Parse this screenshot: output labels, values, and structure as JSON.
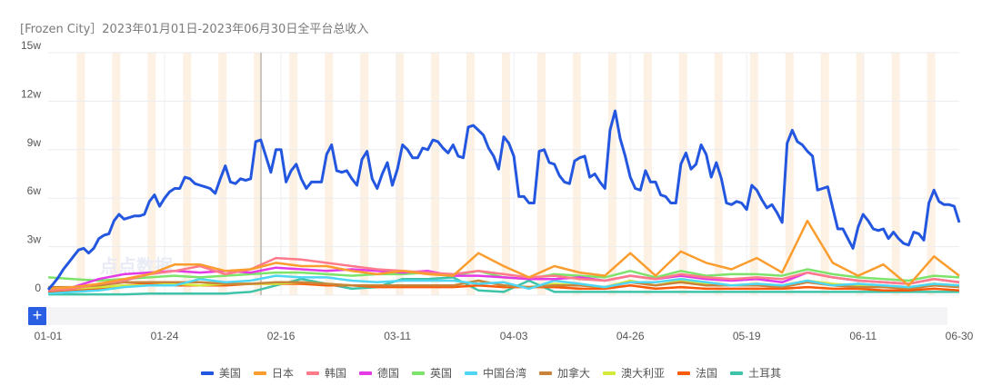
{
  "title": "[Frozen City］2023年01月01日-2023年06月30日全平台总收入",
  "watermark": "点点数据",
  "zoom_button": "+",
  "chart_data": {
    "type": "line",
    "title": "[Frozen City］2023年01月01日-2023年06月30日全平台总收入",
    "xlabel": "",
    "ylabel": "",
    "unit": "w",
    "ylim": [
      0,
      15
    ],
    "yticks": [
      "0",
      "3w",
      "6w",
      "9w",
      "12w",
      "15w"
    ],
    "xlim": [
      "2023-01-01",
      "2023-06-30"
    ],
    "xticks": [
      "01-01",
      "01-24",
      "02-16",
      "03-11",
      "04-03",
      "04-26",
      "05-19",
      "06-11",
      "06-30"
    ],
    "grid": true,
    "weekend_shading": true,
    "legend_position": "bottom",
    "daily_start": "2023-01-01",
    "sparse_x": [
      "01-01",
      "01-06",
      "01-11",
      "01-16",
      "01-21",
      "01-26",
      "01-31",
      "02-05",
      "02-10",
      "02-15",
      "02-20",
      "02-25",
      "03-02",
      "03-07",
      "03-12",
      "03-17",
      "03-22",
      "03-27",
      "04-01",
      "04-06",
      "04-11",
      "04-16",
      "04-21",
      "04-26",
      "05-01",
      "05-06",
      "05-11",
      "05-16",
      "05-21",
      "05-26",
      "05-31",
      "06-05",
      "06-10",
      "06-15",
      "06-20",
      "06-25",
      "06-30"
    ],
    "series": [
      {
        "name": "美国",
        "color": "#2457e0",
        "daily": true,
        "values": [
          0.34,
          0.7,
          1.1,
          1.6,
          2.0,
          2.4,
          2.8,
          2.9,
          2.6,
          2.9,
          3.5,
          3.7,
          3.8,
          4.6,
          5.0,
          4.7,
          4.8,
          4.9,
          4.9,
          5.0,
          5.8,
          6.2,
          5.5,
          6.0,
          6.4,
          6.6,
          6.6,
          7.3,
          7.2,
          6.9,
          6.8,
          6.7,
          6.6,
          6.3,
          7.2,
          8.0,
          7.0,
          6.9,
          7.2,
          7.1,
          7.2,
          9.5,
          9.6,
          8.6,
          7.6,
          9.0,
          9.0,
          7.0,
          7.7,
          8.1,
          7.2,
          6.6,
          7.0,
          7.0,
          7.0,
          8.7,
          9.3,
          7.7,
          7.6,
          7.7,
          7.2,
          6.8,
          8.4,
          8.9,
          7.2,
          6.6,
          7.5,
          8.2,
          6.8,
          7.8,
          9.3,
          9.0,
          8.5,
          8.5,
          9.1,
          9.0,
          9.6,
          9.5,
          9.1,
          8.8,
          9.3,
          8.6,
          8.5,
          10.4,
          10.5,
          10.2,
          9.9,
          9.1,
          8.6,
          7.8,
          9.8,
          9.4,
          8.6,
          6.1,
          6.1,
          5.7,
          5.7,
          8.9,
          9.0,
          8.2,
          8.1,
          7.4,
          7.0,
          6.9,
          8.3,
          8.5,
          8.6,
          7.3,
          7.5,
          7.0,
          6.6,
          10.2,
          11.4,
          9.7,
          8.6,
          7.3,
          6.6,
          6.5,
          7.7,
          7.0,
          7.0,
          6.2,
          6.1,
          5.7,
          5.7,
          8.1,
          8.8,
          7.8,
          8.1,
          9.3,
          8.7,
          7.3,
          8.2,
          7.2,
          5.7,
          5.6,
          5.8,
          5.7,
          5.3,
          6.8,
          6.5,
          5.9,
          5.4,
          5.6,
          5.1,
          4.5,
          9.4,
          10.2,
          9.5,
          9.3,
          8.9,
          8.6,
          6.5,
          6.6,
          6.7,
          5.4,
          4.1,
          4.1,
          3.5,
          2.9,
          4.2,
          5.0,
          4.6,
          4.1,
          4.0,
          4.1,
          3.5,
          3.9,
          3.5,
          3.2,
          3.1,
          3.9,
          3.8,
          3.4,
          5.7,
          6.5,
          5.8,
          5.6,
          5.6,
          5.5,
          4.5
        ]
      },
      {
        "name": "日本",
        "color": "#fb9d2e",
        "values": [
          0.4,
          0.5,
          0.7,
          1.0,
          1.3,
          1.9,
          1.9,
          1.5,
          1.6,
          2.0,
          1.8,
          1.8,
          1.5,
          1.3,
          1.5,
          1.3,
          1.2,
          2.6,
          1.8,
          1.1,
          1.8,
          1.4,
          1.2,
          2.6,
          1.2,
          2.7,
          2.0,
          1.6,
          2.3,
          1.4,
          4.6,
          2.0,
          1.2,
          1.9,
          0.6,
          2.4,
          1.2
        ]
      },
      {
        "name": "韩国",
        "color": "#ff7b8b",
        "values": [
          0.3,
          0.4,
          0.7,
          0.9,
          1.3,
          1.5,
          1.8,
          1.3,
          1.6,
          2.3,
          2.2,
          2.0,
          1.8,
          1.6,
          1.5,
          1.4,
          1.3,
          1.5,
          1.3,
          1.1,
          1.2,
          1.0,
          0.9,
          1.2,
          1.0,
          1.3,
          1.1,
          1.0,
          1.1,
          1.0,
          1.4,
          1.1,
          0.9,
          0.8,
          0.7,
          1.0,
          0.8
        ]
      },
      {
        "name": "德国",
        "color": "#e33ae6",
        "values": [
          0.3,
          0.5,
          1.0,
          1.3,
          1.4,
          1.5,
          1.4,
          1.5,
          1.4,
          1.7,
          1.6,
          1.5,
          1.6,
          1.5,
          1.4,
          1.5,
          1.2,
          1.2,
          1.1,
          1.0,
          1.0,
          1.1,
          0.9,
          1.2,
          1.0,
          1.2,
          1.0,
          0.9,
          1.0,
          0.8,
          1.4,
          1.1,
          0.9,
          0.8,
          0.7,
          1.0,
          0.8
        ]
      },
      {
        "name": "英国",
        "color": "#7de36a",
        "values": [
          1.1,
          1.0,
          0.9,
          1.0,
          1.1,
          1.2,
          1.1,
          1.2,
          1.3,
          1.4,
          1.4,
          1.3,
          1.2,
          1.3,
          1.3,
          1.4,
          1.2,
          1.5,
          1.1,
          1.0,
          1.3,
          1.2,
          1.1,
          1.5,
          1.1,
          1.5,
          1.2,
          1.3,
          1.3,
          1.2,
          1.6,
          1.3,
          1.1,
          1.0,
          0.9,
          1.2,
          1.1
        ]
      },
      {
        "name": "中国台湾",
        "color": "#4fd6f2",
        "values": [
          0.1,
          0.2,
          0.3,
          0.5,
          0.6,
          0.6,
          1.0,
          0.8,
          0.9,
          1.2,
          1.1,
          1.1,
          0.9,
          0.8,
          0.9,
          0.9,
          0.9,
          0.7,
          0.8,
          0.4,
          0.9,
          0.7,
          0.5,
          0.8,
          0.8,
          1.0,
          0.8,
          0.6,
          0.7,
          0.6,
          0.9,
          0.6,
          0.7,
          0.6,
          0.5,
          0.7,
          0.6
        ]
      },
      {
        "name": "加拿大",
        "color": "#c8843a",
        "values": [
          0.5,
          0.5,
          0.6,
          0.8,
          0.8,
          0.8,
          0.8,
          0.7,
          0.7,
          0.8,
          0.8,
          0.7,
          0.6,
          0.6,
          0.6,
          0.6,
          0.6,
          0.9,
          0.6,
          0.5,
          0.6,
          0.6,
          0.5,
          0.8,
          0.6,
          0.8,
          0.6,
          0.6,
          0.6,
          0.5,
          0.8,
          0.6,
          0.5,
          0.5,
          0.4,
          0.6,
          0.5
        ]
      },
      {
        "name": "澳大利亚",
        "color": "#d4ea3a",
        "values": [
          0.3,
          0.4,
          0.5,
          0.6,
          0.6,
          0.7,
          0.6,
          0.7,
          0.7,
          0.7,
          0.8,
          0.7,
          0.6,
          0.6,
          0.6,
          0.6,
          0.6,
          0.9,
          0.6,
          0.5,
          0.7,
          0.6,
          0.5,
          0.9,
          0.6,
          0.9,
          0.7,
          0.6,
          0.7,
          0.6,
          0.9,
          0.7,
          0.6,
          0.5,
          0.5,
          0.7,
          0.6
        ]
      },
      {
        "name": "法国",
        "color": "#fa5a0a",
        "values": [
          0.2,
          0.3,
          0.4,
          0.6,
          0.7,
          0.6,
          0.6,
          0.6,
          0.7,
          0.7,
          0.7,
          0.6,
          0.6,
          0.5,
          0.5,
          0.5,
          0.5,
          0.6,
          0.5,
          0.5,
          0.5,
          0.4,
          0.4,
          0.6,
          0.4,
          0.5,
          0.4,
          0.4,
          0.4,
          0.4,
          0.5,
          0.4,
          0.4,
          0.3,
          0.3,
          0.4,
          0.3
        ]
      },
      {
        "name": "土耳其",
        "color": "#3ec3a8",
        "values": [
          0.05,
          0.05,
          0.05,
          0.05,
          0.1,
          0.1,
          0.1,
          0.1,
          0.2,
          0.6,
          1.0,
          0.7,
          0.4,
          0.5,
          1.0,
          1.0,
          1.1,
          0.3,
          0.2,
          0.9,
          0.2,
          0.2,
          0.2,
          0.2,
          0.2,
          0.2,
          0.2,
          0.2,
          0.2,
          0.2,
          0.2,
          0.2,
          0.2,
          0.2,
          0.2,
          0.2,
          0.2
        ]
      }
    ]
  }
}
